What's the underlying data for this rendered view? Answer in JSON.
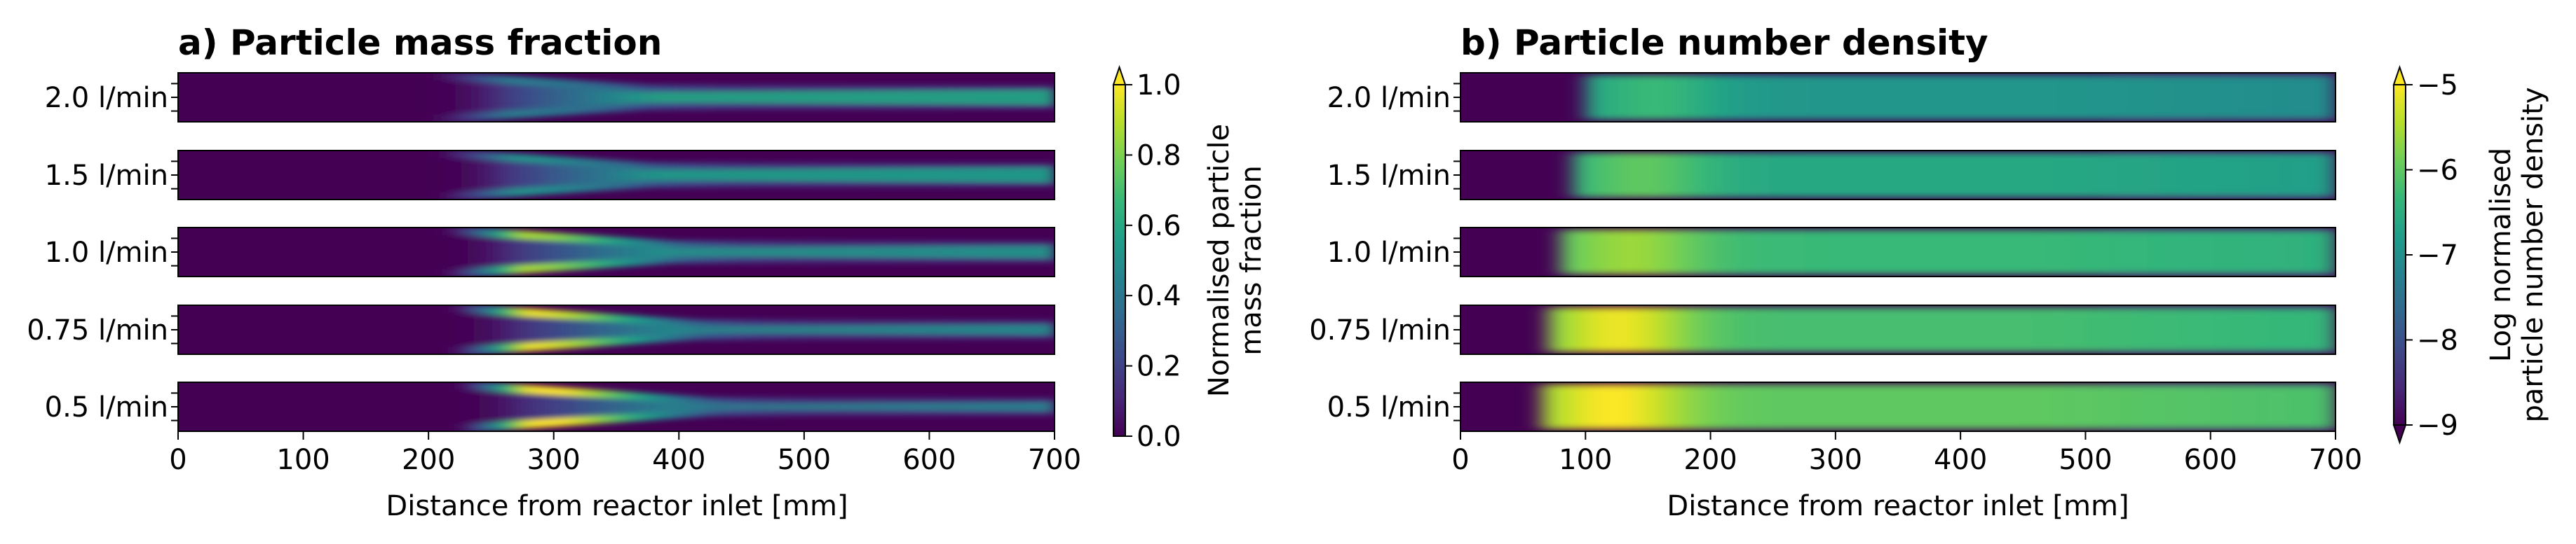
{
  "chart_data": [
    {
      "type": "heatmap",
      "title": "a) Particle mass fraction",
      "xlabel": "Distance from reactor inlet [mm]",
      "xlim": [
        0,
        700
      ],
      "xticks": [
        0,
        100,
        200,
        300,
        400,
        500,
        600,
        700
      ],
      "rows": [
        "2.0 l/min",
        "1.5 l/min",
        "1.0 l/min",
        "0.75 l/min",
        "0.5 l/min"
      ],
      "field": [
        {
          "flow": "2.0 l/min",
          "onset_mm": 205,
          "peak_wall": 0.3,
          "peak_center": 0.58,
          "core_end_width": 0.45
        },
        {
          "flow": "1.5 l/min",
          "onset_mm": 210,
          "peak_wall": 0.4,
          "peak_center": 0.55,
          "core_end_width": 0.45
        },
        {
          "flow": "1.0 l/min",
          "onset_mm": 215,
          "peak_wall": 0.8,
          "peak_center": 0.52,
          "core_end_width": 0.4
        },
        {
          "flow": "0.75 l/min",
          "onset_mm": 220,
          "peak_wall": 0.92,
          "peak_center": 0.48,
          "core_end_width": 0.35
        },
        {
          "flow": "0.5 l/min",
          "onset_mm": 225,
          "peak_wall": 1.0,
          "peak_center": 0.45,
          "core_end_width": 0.32
        }
      ],
      "colorbar": {
        "label_line1": "Normalised particle",
        "label_line2": "mass fraction",
        "min": 0.0,
        "max": 1.0,
        "ticks": [
          "0.0",
          "0.2",
          "0.4",
          "0.6",
          "0.8",
          "1.0"
        ],
        "tick_values": [
          0.0,
          0.2,
          0.4,
          0.6,
          0.8,
          1.0
        ],
        "extend": "max",
        "colormap": "viridis"
      }
    },
    {
      "type": "heatmap",
      "title": "b) Particle number density",
      "xlabel": "Distance from reactor inlet [mm]",
      "xlim": [
        0,
        700
      ],
      "xticks": [
        0,
        100,
        200,
        300,
        400,
        500,
        600,
        700
      ],
      "rows": [
        "2.0 l/min",
        "1.5 l/min",
        "1.0 l/min",
        "0.75 l/min",
        "0.5 l/min"
      ],
      "field": [
        {
          "flow": "2.0 l/min",
          "onset_mm": 100,
          "peak_log": -6.3,
          "plateau_log": -6.9
        },
        {
          "flow": "1.5 l/min",
          "onset_mm": 90,
          "peak_log": -6.0,
          "plateau_log": -6.6
        },
        {
          "flow": "1.0 l/min",
          "onset_mm": 80,
          "peak_log": -5.6,
          "plateau_log": -6.3
        },
        {
          "flow": "0.75 l/min",
          "onset_mm": 70,
          "peak_log": -5.1,
          "plateau_log": -6.2
        },
        {
          "flow": "0.5 l/min",
          "onset_mm": 65,
          "peak_log": -5.0,
          "plateau_log": -6.0
        }
      ],
      "colorbar": {
        "label_line1": "Log normalised",
        "label_line2": "particle number density",
        "min": -9,
        "max": -5,
        "ticks": [
          "−9",
          "−8",
          "−7",
          "−6",
          "−5"
        ],
        "tick_values": [
          -9,
          -8,
          -7,
          -6,
          -5
        ],
        "extend": "both",
        "colormap": "viridis"
      }
    }
  ],
  "colors": {
    "viridis": [
      "#440154",
      "#482878",
      "#3e4989",
      "#31688e",
      "#26828e",
      "#1f9e89",
      "#35b779",
      "#6ece58",
      "#b5de2b",
      "#fde725"
    ]
  }
}
